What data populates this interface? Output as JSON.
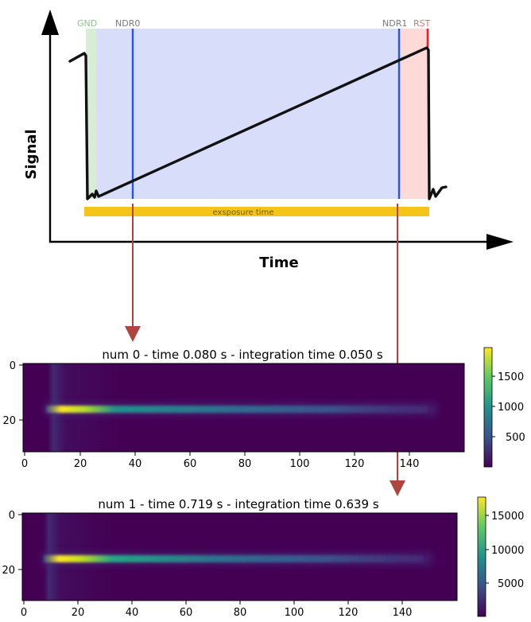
{
  "diagram": {
    "ylabel": "Signal",
    "xlabel": "Time",
    "markers": {
      "gnd": "GND",
      "ndr0": "NDR0",
      "ndr1": "NDR1",
      "rst": "RST"
    },
    "exposure_label": "exsposure time",
    "colors": {
      "gnd_region": "#d9ecd6",
      "integration_region": "#d8ddf9",
      "rst_region": "#fdd9d7",
      "ndr_line": "#2455e6",
      "rst_line": "#e8212a",
      "exposure_bar": "#f5c418",
      "arrow": "#b0443e",
      "gnd_text": "#8ec48a",
      "ndr_text": "#7a7a7a",
      "rst_text": "#e0706a"
    }
  },
  "panels": [
    {
      "title": "num 0 - time 0.080 s - integration time 0.050 s",
      "x_ticks": [
        "0",
        "20",
        "40",
        "60",
        "80",
        "100",
        "120",
        "140"
      ],
      "y_ticks": [
        "0",
        "20"
      ],
      "colorbar_ticks": [
        "1500",
        "1000",
        "500"
      ]
    },
    {
      "title": "num 1 - time 0.719 s - integration time 0.639 s",
      "x_ticks": [
        "0",
        "20",
        "40",
        "60",
        "80",
        "100",
        "120",
        "140"
      ],
      "y_ticks": [
        "0",
        "20"
      ],
      "colorbar_ticks": [
        "15000",
        "10000",
        "5000"
      ]
    }
  ],
  "colormap": "viridis"
}
